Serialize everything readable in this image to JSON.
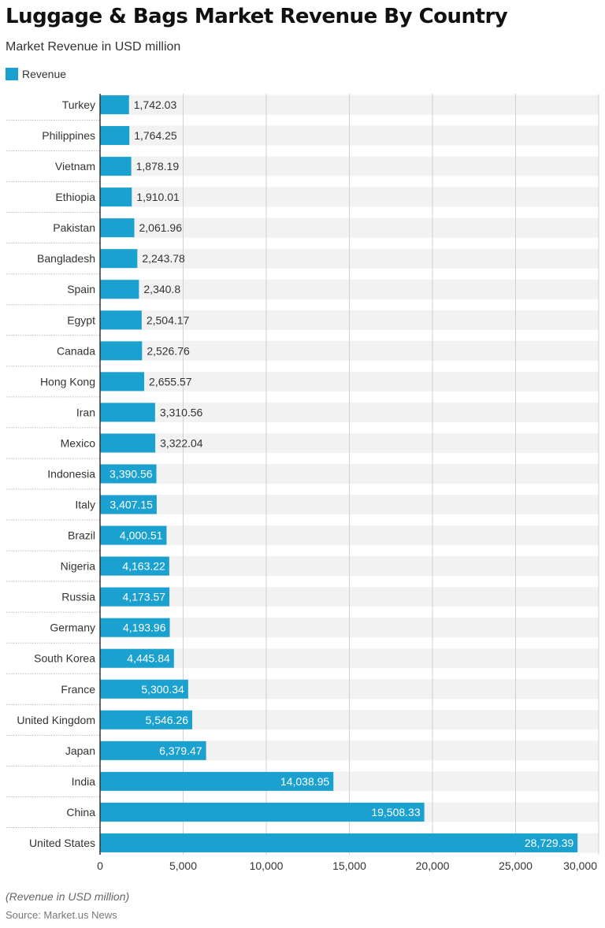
{
  "title": "Luggage & Bags Market Revenue By Country",
  "subtitle": "Market Revenue in USD million",
  "note": "(Revenue in USD million)",
  "source": "Source: Market.us News",
  "colors": {
    "bar": "#1aa1cf",
    "band": "#f2f2f2",
    "grid": "#d0d0d0"
  },
  "chart_data": {
    "type": "bar",
    "orientation": "horizontal",
    "legend": {
      "entries": [
        "Revenue"
      ],
      "placement": "top-left"
    },
    "series": [
      {
        "name": "Revenue",
        "values": [
          1742.03,
          1764.25,
          1878.19,
          1910.01,
          2061.96,
          2243.78,
          2340.8,
          2504.17,
          2526.76,
          2655.57,
          3310.56,
          3322.04,
          3390.56,
          3407.15,
          4000.51,
          4163.22,
          4173.57,
          4193.96,
          4445.84,
          5300.34,
          5546.26,
          6379.47,
          14038.95,
          19508.33,
          28729.39
        ]
      }
    ],
    "categories": [
      "Turkey",
      "Philippines",
      "Vietnam",
      "Ethiopia",
      "Pakistan",
      "Bangladesh",
      "Spain",
      "Egypt",
      "Canada",
      "Hong Kong",
      "Iran",
      "Mexico",
      "Indonesia",
      "Italy",
      "Brazil",
      "Nigeria",
      "Russia",
      "Germany",
      "South Korea",
      "France",
      "United Kingdom",
      "Japan",
      "India",
      "China",
      "United States"
    ],
    "data_labels": [
      "1,742.03",
      "1,764.25",
      "1,878.19",
      "1,910.01",
      "2,061.96",
      "2,243.78",
      "2,340.8",
      "2,504.17",
      "2,526.76",
      "2,655.57",
      "3,310.56",
      "3,322.04",
      "3,390.56",
      "3,407.15",
      "4,000.51",
      "4,163.22",
      "4,173.57",
      "4,193.96",
      "4,445.84",
      "5,300.34",
      "5,546.26",
      "6,379.47",
      "14,038.95",
      "19,508.33",
      "28,729.39"
    ],
    "xlim": [
      0,
      30000
    ],
    "xticks": [
      0,
      5000,
      10000,
      15000,
      20000,
      25000,
      30000
    ],
    "xtick_labels": [
      "0",
      "5,000",
      "10,000",
      "15,000",
      "20,000",
      "25,000",
      "30,000"
    ],
    "grid": true
  }
}
